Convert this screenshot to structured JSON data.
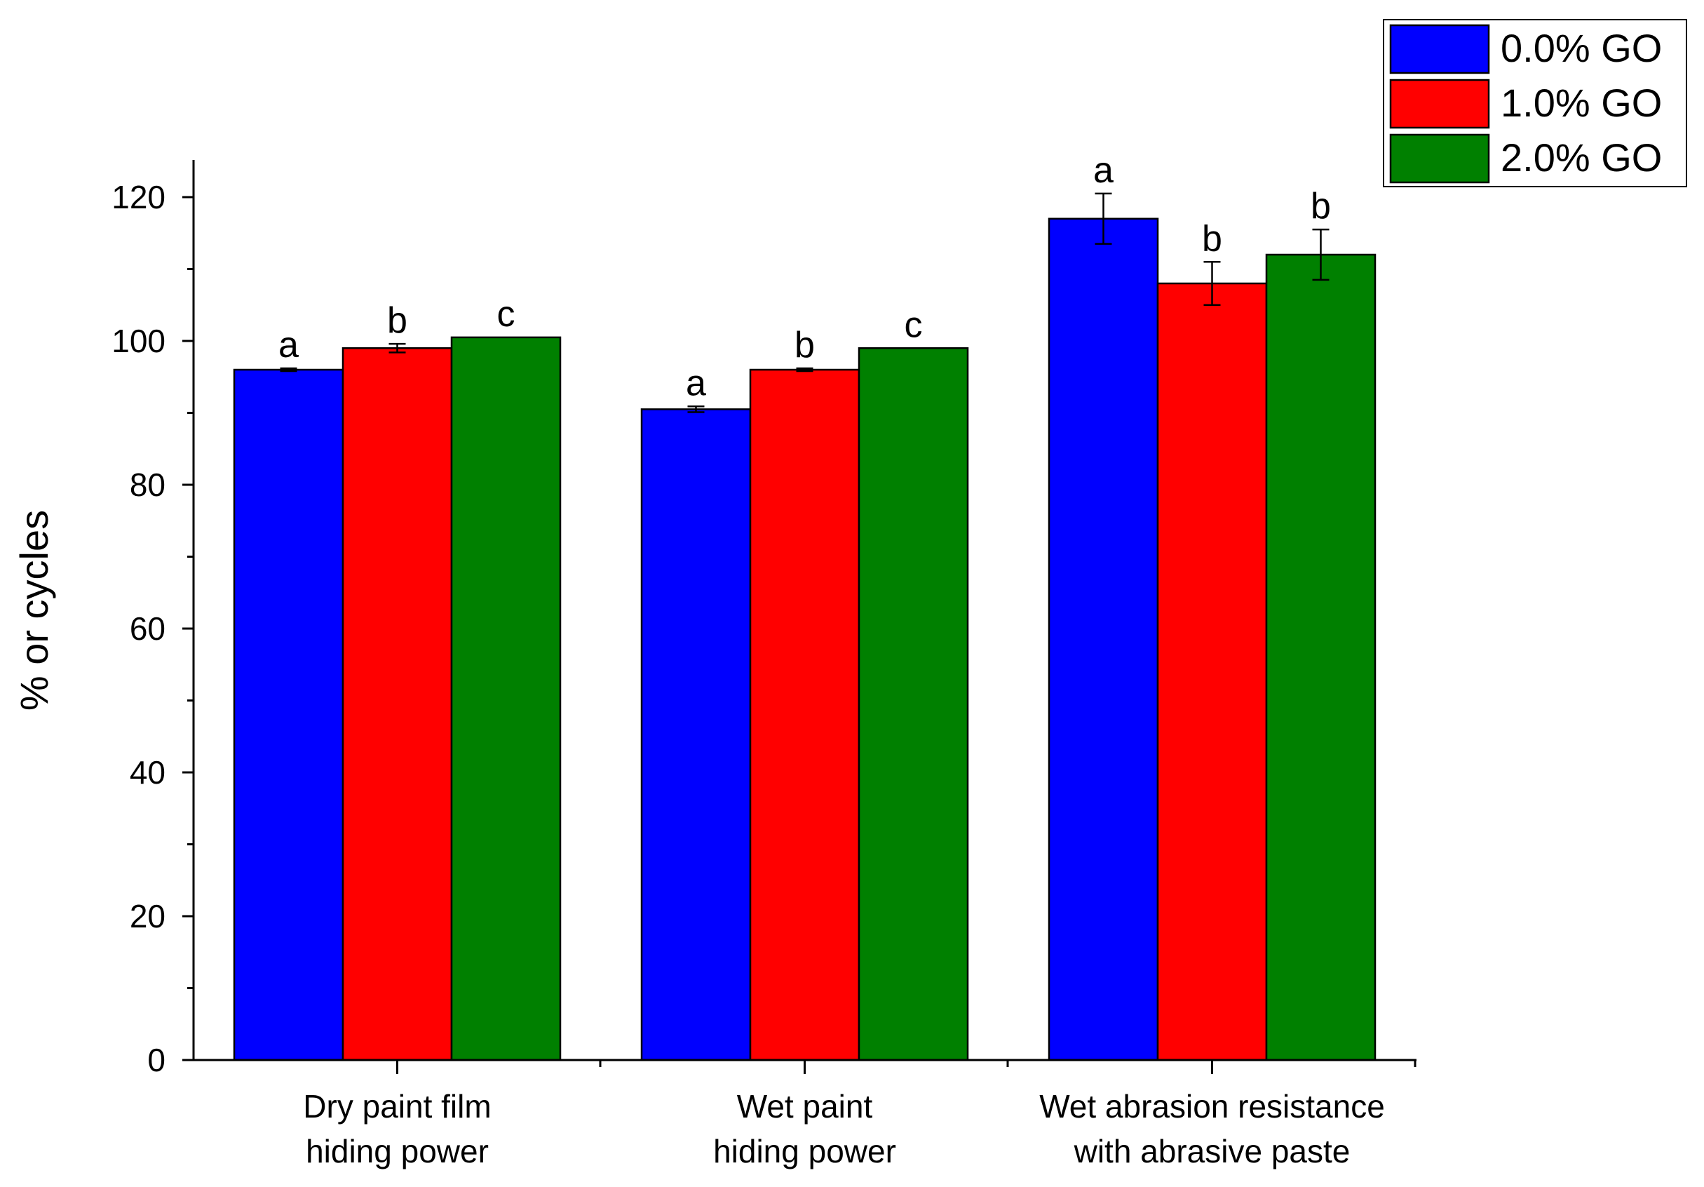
{
  "chart_data": {
    "type": "bar",
    "title": "",
    "xlabel": "",
    "ylabel": "% or cycles",
    "ylim": [
      0,
      125
    ],
    "yticks": [
      0,
      20,
      40,
      60,
      80,
      100,
      120
    ],
    "grid": false,
    "legend_position": "top-right",
    "categories": [
      [
        "Dry paint film",
        "hiding power"
      ],
      [
        "Wet paint",
        "hiding power"
      ],
      [
        "Wet abrasion resistance",
        "with abrasive paste"
      ]
    ],
    "series": [
      {
        "name": "0.0% GO",
        "color": "#0000ff",
        "values": [
          96,
          90.5,
          117
        ],
        "errors": [
          0.2,
          0.4,
          3.5
        ],
        "letters": [
          "a",
          "a",
          "a"
        ]
      },
      {
        "name": "1.0% GO",
        "color": "#ff0000",
        "values": [
          99,
          96,
          108
        ],
        "errors": [
          0.6,
          0.2,
          3.0
        ],
        "letters": [
          "b",
          "b",
          "b"
        ]
      },
      {
        "name": "2.0% GO",
        "color": "#008000",
        "values": [
          100.5,
          99,
          112
        ],
        "errors": [
          0,
          0,
          3.5
        ],
        "letters": [
          "c",
          "c",
          "b"
        ]
      }
    ]
  }
}
